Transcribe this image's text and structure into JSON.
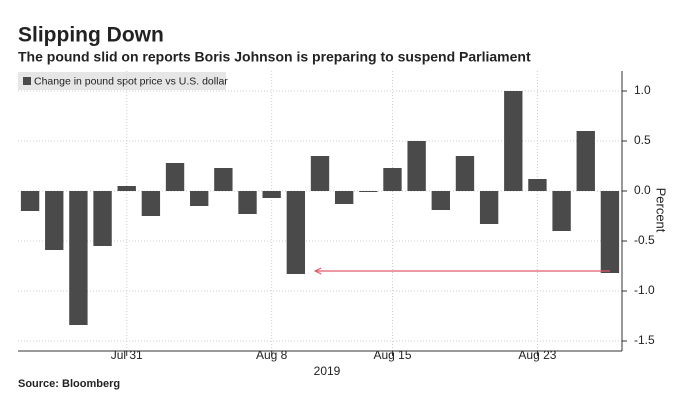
{
  "chart_data": {
    "type": "bar",
    "title": "Slipping Down",
    "subtitle": "The pound slid on reports Boris Johnson is preparing to suspend Parliament",
    "legend": "Change in pound spot price vs U.S. dollar",
    "ylabel": "Percent",
    "xlabel": "2019",
    "source": "Source: Bloomberg",
    "color": "#4a4a4a",
    "categories": [
      null,
      null,
      null,
      null,
      "Jul 31",
      null,
      null,
      null,
      null,
      null,
      "Aug 8",
      null,
      null,
      null,
      null,
      "Aug 15",
      null,
      null,
      null,
      null,
      null,
      "Aug 23",
      null,
      null,
      null
    ],
    "values": [
      -0.2,
      -0.59,
      -1.34,
      -0.55,
      0.05,
      -0.25,
      0.28,
      -0.15,
      0.23,
      -0.23,
      -0.07,
      -0.83,
      0.35,
      -0.13,
      -0.01,
      0.23,
      0.5,
      -0.19,
      0.35,
      -0.33,
      1.0,
      0.12,
      -0.4,
      0.6,
      -0.82
    ],
    "ylim": [
      -1.6,
      1.2
    ],
    "yticks": [
      {
        "value": 1,
        "label": "1.0"
      },
      0.5,
      {
        "value": 0,
        "label": "0.0"
      },
      -0.5,
      {
        "value": -1,
        "label": "-1.0"
      },
      -1.5
    ],
    "grid": true
  }
}
